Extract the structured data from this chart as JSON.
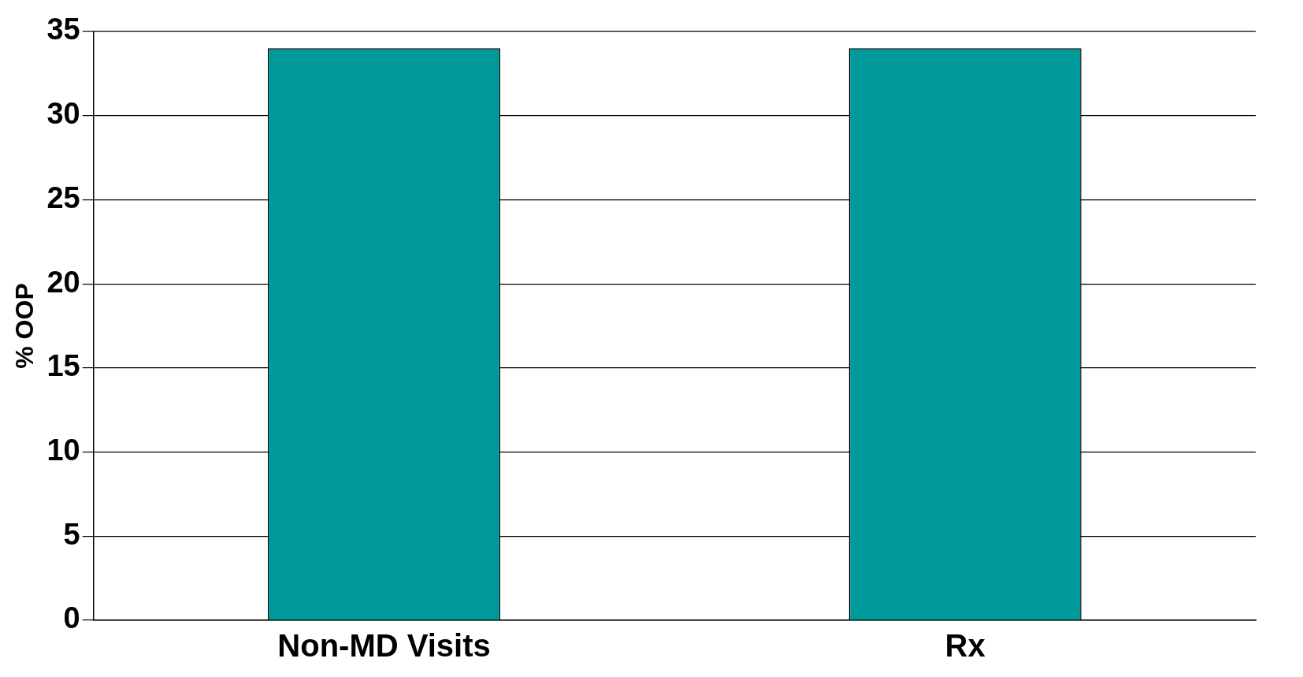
{
  "chart_data": {
    "type": "bar",
    "ylabel": "% OOP",
    "categories": [
      "Non-MD Visits",
      "Rx"
    ],
    "values": [
      34,
      34
    ],
    "color": "#009999",
    "ylim": [
      0,
      35
    ],
    "yticks": [
      0,
      5,
      10,
      15,
      20,
      25,
      30,
      35
    ],
    "grid": "y",
    "legend": false
  }
}
